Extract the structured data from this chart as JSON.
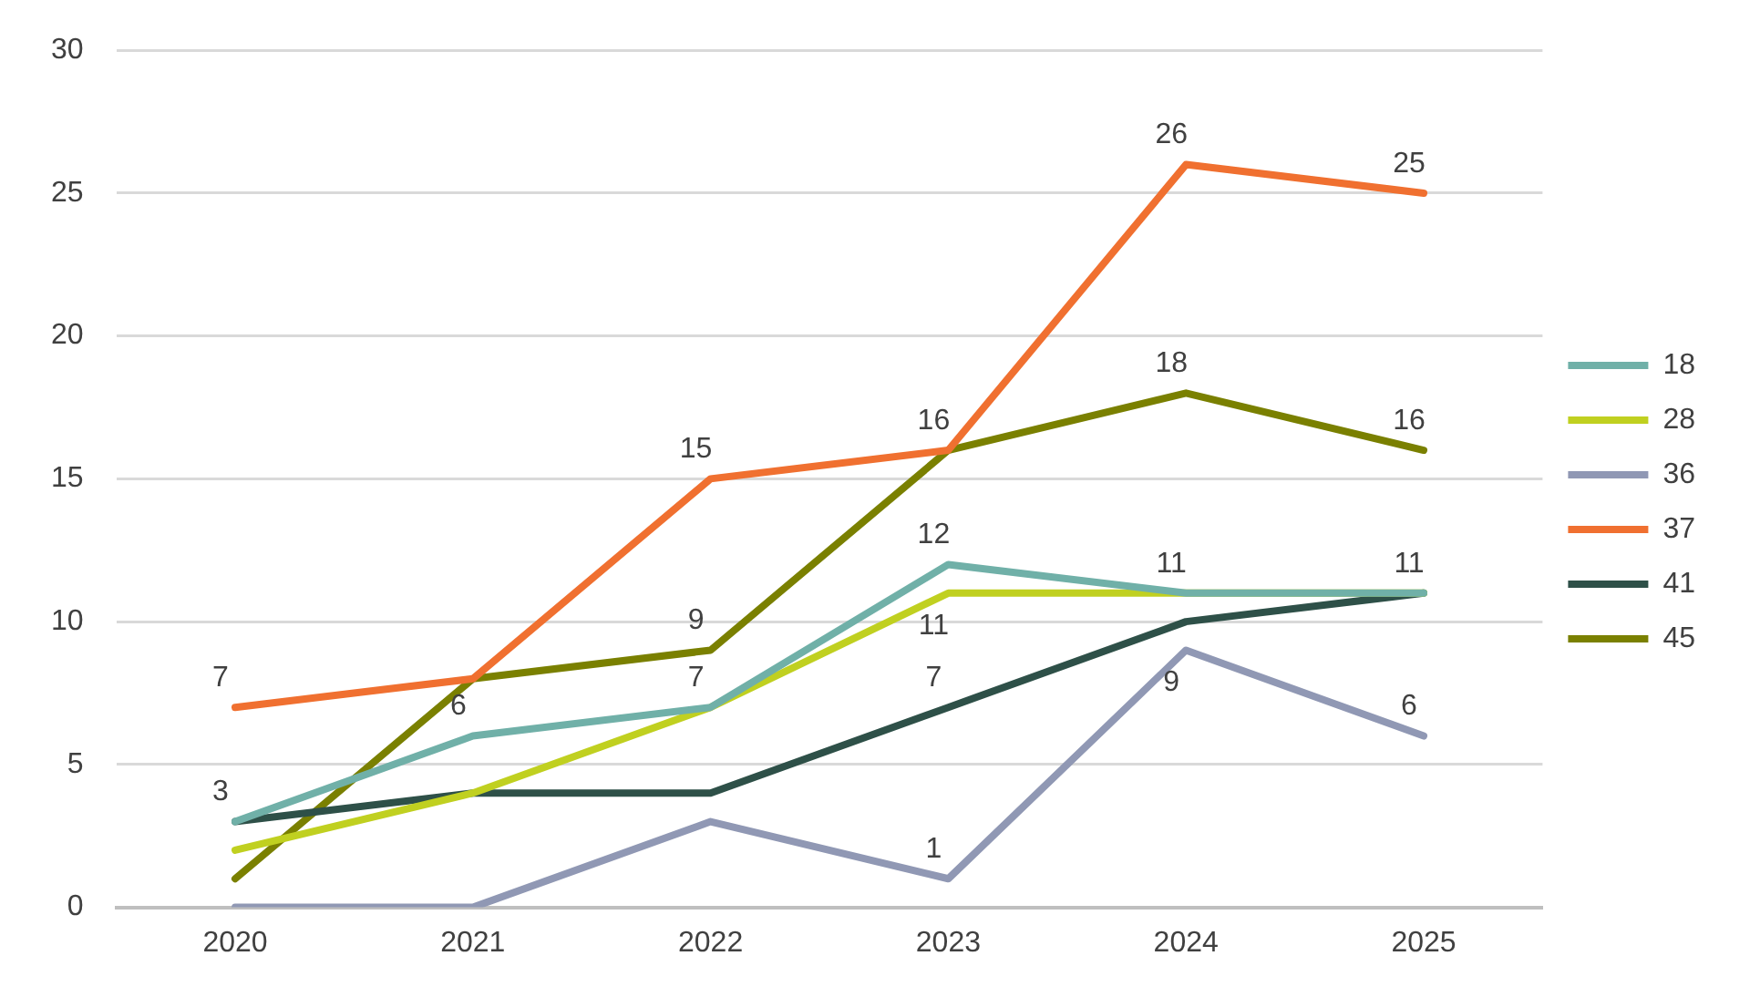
{
  "chart_data": {
    "type": "line",
    "categories": [
      "2020",
      "2021",
      "2022",
      "2023",
      "2024",
      "2025"
    ],
    "series": [
      {
        "name": "18",
        "color": "#70b0a8",
        "values": [
          3,
          6,
          7,
          12,
          11,
          11
        ],
        "value_labels": [
          "3",
          "6",
          "7",
          "12",
          "11",
          null
        ]
      },
      {
        "name": "28",
        "color": "#c0d020",
        "values": [
          2,
          4,
          7,
          11,
          11,
          11
        ],
        "value_labels": [
          null,
          null,
          null,
          "11",
          null,
          null
        ]
      },
      {
        "name": "36",
        "color": "#9098b4",
        "values": [
          0,
          0,
          3,
          1,
          9,
          6
        ],
        "value_labels": [
          null,
          null,
          null,
          "1",
          "9",
          "6"
        ]
      },
      {
        "name": "37",
        "color": "#f07030",
        "values": [
          7,
          8,
          15,
          16,
          26,
          25
        ],
        "value_labels": [
          "7",
          null,
          "15",
          "16",
          "26",
          "25"
        ]
      },
      {
        "name": "41",
        "color": "#2e5048",
        "values": [
          3,
          4,
          4,
          7,
          10,
          11
        ],
        "value_labels": [
          null,
          null,
          null,
          "7",
          null,
          "11"
        ]
      },
      {
        "name": "45",
        "color": "#7a8000",
        "values": [
          1,
          8,
          9,
          16,
          18,
          16
        ],
        "value_labels": [
          null,
          null,
          "9",
          null,
          "18",
          "16"
        ]
      }
    ],
    "ylim": [
      0,
      30
    ],
    "yticks": [
      0,
      5,
      10,
      15,
      20,
      25,
      30
    ],
    "grid": "y",
    "legend": "right",
    "marker": "none",
    "line_style": "solid"
  }
}
